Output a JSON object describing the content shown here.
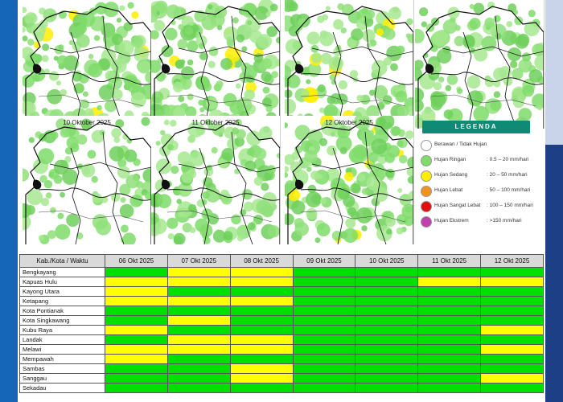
{
  "maps": [
    {
      "id": "map-1",
      "date": ""
    },
    {
      "id": "map-2",
      "date": ""
    },
    {
      "id": "map-3",
      "date": ""
    },
    {
      "id": "map-4",
      "date": ""
    },
    {
      "id": "map-5",
      "date": "10 Oktober 2025"
    },
    {
      "id": "map-6",
      "date": "11 Oktober 2025"
    },
    {
      "id": "map-7",
      "date": "12 Oktober 2025"
    }
  ],
  "legend": {
    "title": "LEGENDA",
    "items": [
      {
        "label": "Berawan / Tidak Hujan",
        "range": "",
        "color": "#ffffff"
      },
      {
        "label": "Hujan Ringan",
        "range": ": 0.5 – 20 mm/hari",
        "color": "#7fdc6a"
      },
      {
        "label": "Hujan Sedang",
        "range": ": 20 – 50 mm/hari",
        "color": "#ffee00"
      },
      {
        "label": "Hujan Lebat",
        "range": ": 50 – 100 mm/hari",
        "color": "#f0921e"
      },
      {
        "label": "Hujan Sangat Lebat",
        "range": ": 100 – 150 mm/hari",
        "color": "#e01010"
      },
      {
        "label": "Hujan Ekstrem",
        "range": ": >150 mm/hari",
        "color": "#c23fb0"
      }
    ]
  },
  "table": {
    "header": "Kab./Kota / Waktu",
    "dates": [
      "06 Okt 2025",
      "07 Okt 2025",
      "08 Okt 2025",
      "09 Okt 2025",
      "10 Okt 2025",
      "11 Okt 2025",
      "12 Okt 2025"
    ],
    "status_colors": {
      "g": "#00e000",
      "y": "#ffff00"
    },
    "rows": [
      {
        "name": "Bengkayang",
        "cells": [
          "g",
          "y",
          "y",
          "g",
          "g",
          "g",
          "g"
        ]
      },
      {
        "name": "Kapuas Hulu",
        "cells": [
          "y",
          "y",
          "y",
          "g",
          "g",
          "y",
          "y"
        ]
      },
      {
        "name": "Kayong Utara",
        "cells": [
          "y",
          "g",
          "g",
          "g",
          "g",
          "g",
          "g"
        ]
      },
      {
        "name": "Ketapang",
        "cells": [
          "y",
          "y",
          "y",
          "g",
          "g",
          "g",
          "g"
        ]
      },
      {
        "name": "Kota Pontianak",
        "cells": [
          "g",
          "g",
          "g",
          "g",
          "g",
          "g",
          "g"
        ]
      },
      {
        "name": "Kota Singkawang",
        "cells": [
          "g",
          "y",
          "g",
          "g",
          "g",
          "g",
          "g"
        ]
      },
      {
        "name": "Kubu Raya",
        "cells": [
          "y",
          "g",
          "g",
          "g",
          "g",
          "g",
          "y"
        ]
      },
      {
        "name": "Landak",
        "cells": [
          "g",
          "y",
          "y",
          "g",
          "g",
          "g",
          "g"
        ]
      },
      {
        "name": "Melawi",
        "cells": [
          "y",
          "y",
          "y",
          "g",
          "g",
          "g",
          "y"
        ]
      },
      {
        "name": "Mempawah",
        "cells": [
          "y",
          "g",
          "g",
          "g",
          "g",
          "g",
          "g"
        ]
      },
      {
        "name": "Sambas",
        "cells": [
          "g",
          "g",
          "y",
          "g",
          "g",
          "g",
          "g"
        ]
      },
      {
        "name": "Sanggau",
        "cells": [
          "g",
          "g",
          "y",
          "g",
          "g",
          "g",
          "y"
        ]
      },
      {
        "name": "Sekadau",
        "cells": [
          "g",
          "g",
          "g",
          "g",
          "g",
          "g",
          "g"
        ]
      }
    ]
  }
}
